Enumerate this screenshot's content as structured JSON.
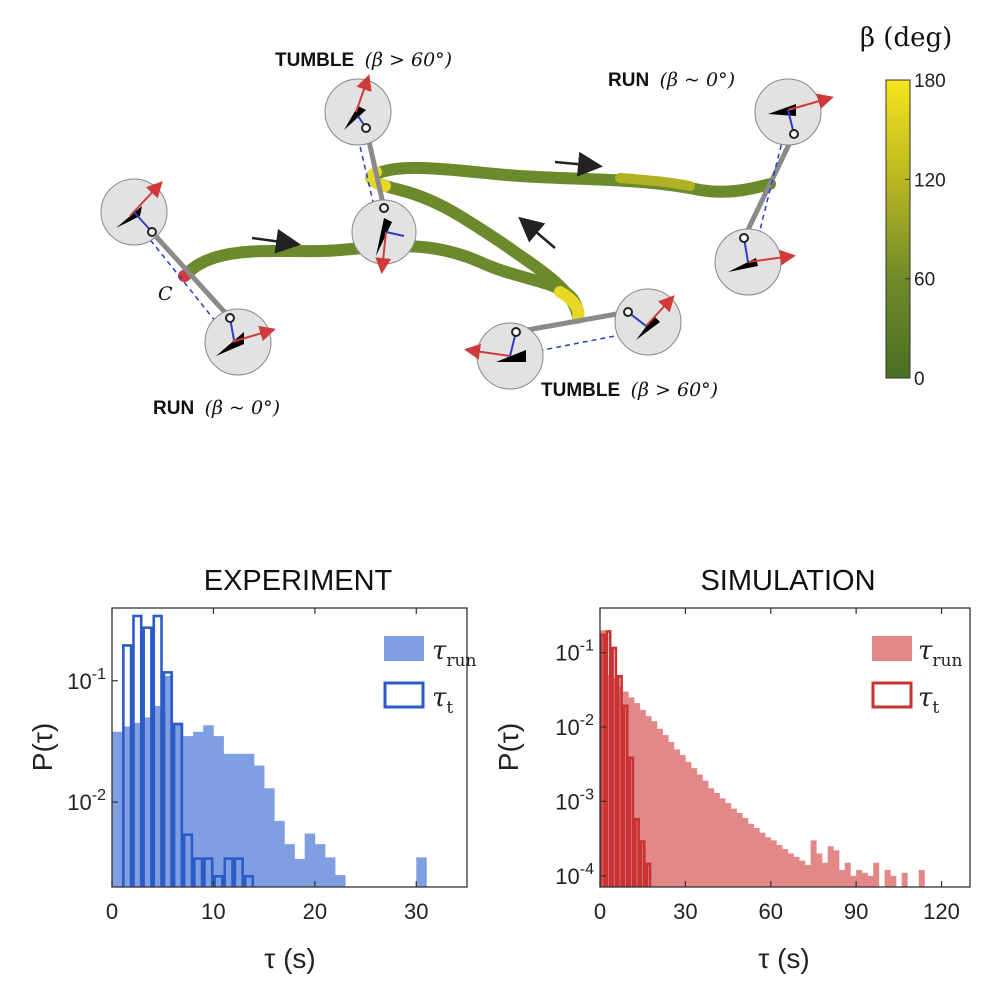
{
  "diagram": {
    "labels": [
      {
        "id": "tumble-top",
        "word": "TUMBLE",
        "math": "(β > 60°)"
      },
      {
        "id": "run-right",
        "word": "RUN",
        "math": "(β ~ 0°)"
      },
      {
        "id": "run-left",
        "word": "RUN",
        "math": "(β ~ 0°)"
      },
      {
        "id": "tumble-bottom",
        "word": "TUMBLE",
        "math": "(β > 60°)"
      }
    ],
    "contact_label": "C",
    "colorbar": {
      "title": "β (deg)",
      "ticks": [
        "0",
        "60",
        "120",
        "180"
      ],
      "range": [
        0,
        180
      ],
      "low_color": "#4a6e22",
      "high_color": "#f2e41a"
    }
  },
  "chart_data": [
    {
      "type": "bar",
      "title": "EXPERIMENT",
      "xlabel": "τ (s)",
      "ylabel": "P(τ)",
      "xlim": [
        0,
        35
      ],
      "ylim_log10": [
        -2.7,
        -0.4
      ],
      "xticks": [
        "0",
        "10",
        "20",
        "30"
      ],
      "xtick_values": [
        0,
        10,
        20,
        30
      ],
      "yticks": [
        "10-1",
        "10-2"
      ],
      "ytick_exponents": [
        -1,
        -2
      ],
      "bin_width": 1,
      "series": [
        {
          "name": "τrun",
          "style": "filled",
          "color": "#7f9fe2",
          "start": 0,
          "values": [
            0.038,
            0.042,
            0.045,
            0.05,
            0.062,
            0.11,
            0.045,
            0.035,
            0.038,
            0.043,
            0.035,
            0.025,
            0.025,
            0.025,
            0.02,
            0.013,
            0.007,
            0.0045,
            0.0034,
            0.0055,
            0.0045,
            0.0035,
            0.0025,
            0.0,
            0.0,
            0.0,
            0.0,
            0.0,
            0.0,
            0.0,
            0.0035,
            0.0,
            0.0,
            0.0,
            0.0
          ]
        },
        {
          "name": "τt",
          "style": "outline",
          "color": "#2a5bc6",
          "start": 0,
          "values": [
            0.002,
            0.2,
            0.35,
            0.28,
            0.35,
            0.12,
            0.045,
            0.0055,
            0.0035,
            0.0035,
            0.0025,
            0.0035,
            0.0035,
            0.0025,
            0.0,
            0.0,
            0.0,
            0.0,
            0.0,
            0.0,
            0.0,
            0.0,
            0.0,
            0.0,
            0.0,
            0.0,
            0.0,
            0.0,
            0.0,
            0.0,
            0.0,
            0.0,
            0.0,
            0.0,
            0.0
          ]
        }
      ]
    },
    {
      "type": "bar",
      "title": "SIMULATION",
      "xlabel": "τ (s)",
      "ylabel": "P(τ)",
      "xlim": [
        0,
        130
      ],
      "ylim_log10": [
        -4.15,
        -0.4
      ],
      "xticks": [
        "0",
        "30",
        "60",
        "90",
        "120"
      ],
      "xtick_values": [
        0,
        30,
        60,
        90,
        120
      ],
      "yticks": [
        "10-1",
        "10-2",
        "10-3",
        "10-4"
      ],
      "ytick_exponents": [
        -1,
        -2,
        -3,
        -4
      ],
      "bin_width": 2,
      "series": [
        {
          "name": "τrun",
          "style": "filled",
          "color": "#e28888",
          "start": 0,
          "values": [
            0.2,
            0.05,
            0.045,
            0.035,
            0.03,
            0.025,
            0.021,
            0.017,
            0.014,
            0.012,
            0.0095,
            0.0078,
            0.0063,
            0.005,
            0.0042,
            0.0034,
            0.0028,
            0.0023,
            0.0019,
            0.0015,
            0.0013,
            0.0011,
            0.00095,
            0.0008,
            0.0007,
            0.0006,
            0.0005,
            0.00044,
            0.00038,
            0.00033,
            0.0003,
            0.00026,
            0.00023,
            0.0002,
            0.00018,
            0.00016,
            0.00014,
            0.0003,
            0.0002,
            0.00015,
            0.00025,
            0.00022,
            0.00012,
            0.00015,
            0.0001,
            0.00012,
            0.00011,
            0.0001,
            0.00015,
            0.0,
            0.00012,
            0.0001,
            0.0,
            0.00011,
            0.0,
            0.0,
            0.00012,
            0.0,
            0.0,
            0.0,
            0.0,
            0.0,
            0.0,
            0.0,
            0.0
          ]
        },
        {
          "name": "τt",
          "style": "outline",
          "color": "#c83232",
          "start": 0,
          "values": [
            0.18,
            0.2,
            0.12,
            0.05,
            0.02,
            0.004,
            0.0006,
            0.0003,
            0.00015,
            0.0,
            0.0,
            0.0,
            0.0,
            0.0,
            0.0,
            0.0,
            0.0,
            0.0,
            0.0,
            0.0,
            0.0,
            0.0,
            0.0,
            0.0,
            0.0,
            0.0,
            0.0,
            0.0,
            0.0,
            0.0,
            0.0,
            0.0,
            0.0,
            0.0,
            0.0,
            0.0,
            0.0,
            0.0,
            0.0,
            0.0,
            0.0,
            0.0,
            0.0,
            0.0,
            0.0,
            0.0,
            0.0,
            0.0,
            0.0,
            0.0,
            0.0,
            0.0,
            0.0,
            0.0,
            0.0,
            0.0,
            0.0,
            0.0,
            0.0,
            0.0,
            0.0,
            0.0,
            0.0,
            0.0,
            0.0
          ]
        }
      ]
    }
  ]
}
